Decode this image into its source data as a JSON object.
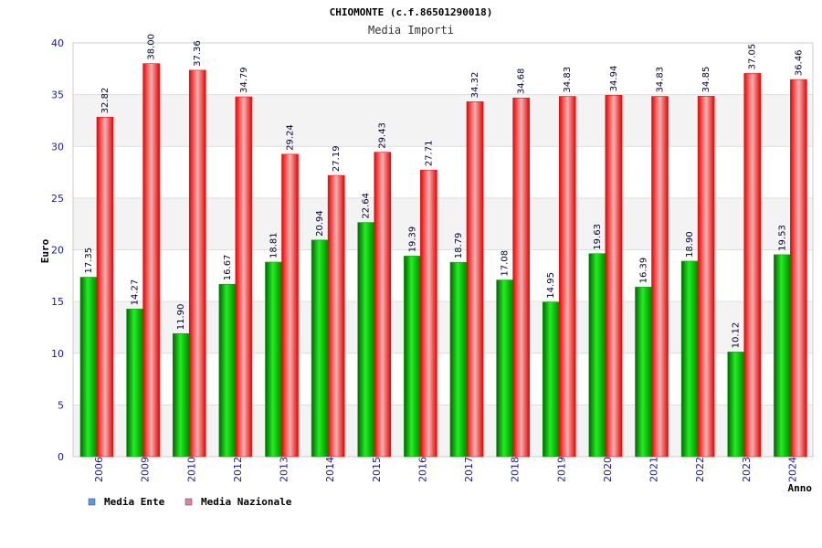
{
  "chart_data": {
    "type": "bar",
    "title": "CHIOMONTE (c.f.86501290018)",
    "subtitle": "Media Importi",
    "xlabel": "Anno",
    "ylabel": "Euro",
    "ylim": [
      0,
      40
    ],
    "yticks": [
      "0",
      "5",
      "10",
      "15",
      "20",
      "25",
      "30",
      "35",
      "40"
    ],
    "grid": true,
    "legend_position": "bottom-left",
    "categories": [
      "2006",
      "2009",
      "2010",
      "2012",
      "2013",
      "2014",
      "2015",
      "2016",
      "2017",
      "2018",
      "2019",
      "2020",
      "2021",
      "2022",
      "2023",
      "2024"
    ],
    "series": [
      {
        "name": "Media Ente",
        "color": "#00aa00",
        "legend_color": "#5599ee",
        "values": [
          17.35,
          14.27,
          11.9,
          16.67,
          18.81,
          20.94,
          22.64,
          19.39,
          18.79,
          17.08,
          14.95,
          19.63,
          16.39,
          18.9,
          10.12,
          19.53
        ],
        "labels": [
          "17.35",
          "14.27",
          "11.90",
          "16.67",
          "18.81",
          "20.94",
          "22.64",
          "19.39",
          "18.79",
          "17.08",
          "14.95",
          "19.63",
          "16.39",
          "18.90",
          "10.12",
          "19.53"
        ]
      },
      {
        "name": "Media Nazionale",
        "color": "#ee1111",
        "legend_color": "#e07fa8",
        "values": [
          32.82,
          38.0,
          37.36,
          34.79,
          29.24,
          27.19,
          29.43,
          27.71,
          34.32,
          34.68,
          34.83,
          34.94,
          34.83,
          34.85,
          37.05,
          36.46
        ],
        "labels": [
          "32.82",
          "38.00",
          "37.36",
          "34.79",
          "29.24",
          "27.19",
          "29.43",
          "27.71",
          "34.32",
          "34.68",
          "34.83",
          "34.94",
          "34.83",
          "34.85",
          "37.05",
          "36.46"
        ]
      }
    ]
  }
}
